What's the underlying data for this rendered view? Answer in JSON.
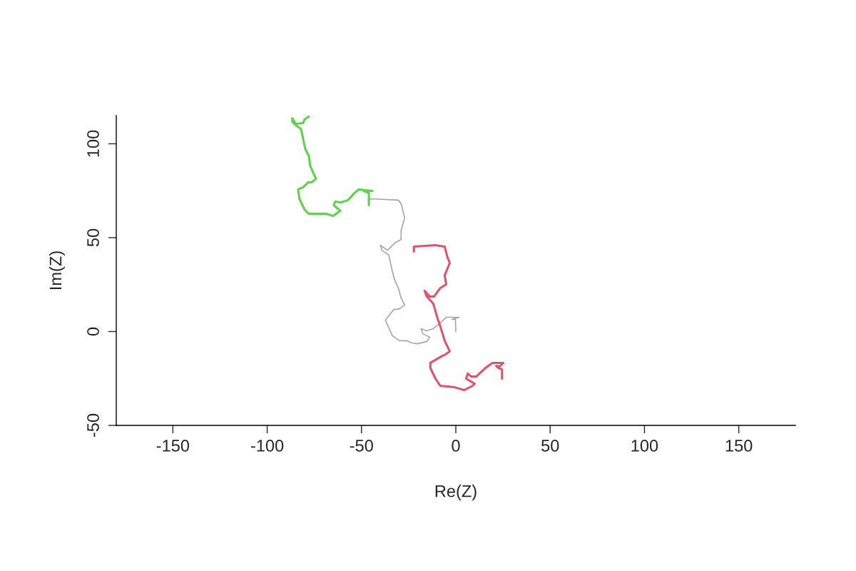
{
  "chart_data": {
    "type": "line",
    "xlabel": "Re(Z)",
    "ylabel": "Im(Z)",
    "xlim": [
      -180,
      180
    ],
    "ylim": [
      -50,
      115
    ],
    "xticks": [
      -150,
      -100,
      -50,
      0,
      50,
      100,
      150
    ],
    "yticks": [
      -50,
      0,
      50,
      100
    ],
    "grid": false,
    "legend": false,
    "marker": "none",
    "line_style": "solid",
    "series": [
      {
        "color": "#a6a6a6",
        "x": [
          0,
          -0.2,
          -2.1,
          1.7,
          -5.1,
          -8.2,
          -12.0,
          -15.7,
          -18.4,
          -17.6,
          -13.8,
          -15.4,
          -20.3,
          -23.3,
          -26.0,
          -29.8,
          -33.6,
          -37.4,
          -32.8,
          -30.9,
          -29.8,
          -27.1,
          -29.0,
          -30.5,
          -32.4,
          -33.6,
          -34.7,
          -35.5,
          -39.2,
          -40.0,
          -36.2,
          -32.4,
          -29.0,
          -29.0,
          -27.1,
          -29.0,
          -30.5,
          -44.9,
          -46.4
        ],
        "values": [
          0,
          6.5,
          6.5,
          7.6,
          7.6,
          4.6,
          1.5,
          0.4,
          1.5,
          -1.1,
          -3.0,
          -5.3,
          -6.5,
          -6.1,
          -4.9,
          -4.9,
          -2.3,
          6.1,
          11.8,
          11.8,
          12.2,
          14.1,
          17.9,
          23.2,
          27.4,
          31.9,
          36.9,
          40.7,
          43.3,
          46.0,
          43.3,
          47.1,
          49.0,
          54.0,
          60.5,
          68.1,
          70.0,
          70.7,
          70.0
        ]
      },
      {
        "color": "#61d04f",
        "x": [
          -46.1,
          -46.1,
          -48.7,
          -44.2,
          -51.4,
          -53.7,
          -57.1,
          -60.9,
          -63.9,
          -64.7,
          -61.2,
          -65.0,
          -68.8,
          -72.6,
          -77.9,
          -80.2,
          -82.9,
          -83.6,
          -81.0,
          -78.3,
          -76.4,
          -74.1,
          -75.3,
          -77.2,
          -77.9,
          -79.8,
          -81.7,
          -82.1,
          -84.8,
          -86.7,
          -86.7,
          -84.8,
          -81.0,
          -80.2,
          -77.9
        ],
        "values": [
          67.3,
          73.8,
          74.9,
          74.9,
          75.7,
          73.8,
          70.0,
          68.8,
          69.2,
          67.3,
          64.3,
          61.6,
          62.7,
          62.7,
          62.7,
          65.0,
          70.7,
          75.7,
          76.8,
          79.5,
          79.5,
          81.4,
          84.0,
          88.2,
          93.5,
          97.3,
          106.1,
          108.0,
          109.9,
          111.8,
          113.7,
          110.6,
          111.0,
          112.9,
          114.5
        ]
      },
      {
        "color": "#df536b",
        "x": [
          -22.2,
          -22.2,
          -10.8,
          -5.9,
          -4.4,
          -3.2,
          -5.9,
          -5.1,
          -8.2,
          -11.6,
          -13.8,
          -16.5,
          -15.4,
          -11.9,
          -10.0,
          -8.2,
          -5.9,
          -3.2,
          -5.9,
          -7.0,
          -13.5,
          -13.5,
          -10.8,
          -8.2,
          -0.6,
          4.4,
          8.9,
          10.0,
          5.5,
          6.3,
          8.2,
          10.8,
          15.7,
          19.5,
          25.2,
          23.3,
          21.4,
          22.6,
          24.5,
          24.5
        ],
        "values": [
          42.6,
          45.2,
          46.0,
          45.2,
          39.5,
          36.5,
          30.0,
          25.1,
          23.2,
          18.6,
          18.6,
          21.7,
          18.6,
          14.8,
          8.0,
          2.7,
          -4.9,
          -10.6,
          -12.5,
          -12.9,
          -16.7,
          -19.4,
          -25.1,
          -28.9,
          -29.7,
          -31.2,
          -28.9,
          -27.8,
          -25.1,
          -22.4,
          -24.0,
          -24.0,
          -19.4,
          -16.7,
          -16.7,
          -18.6,
          -18.3,
          -19.4,
          -20.2,
          -25.1
        ]
      }
    ]
  }
}
